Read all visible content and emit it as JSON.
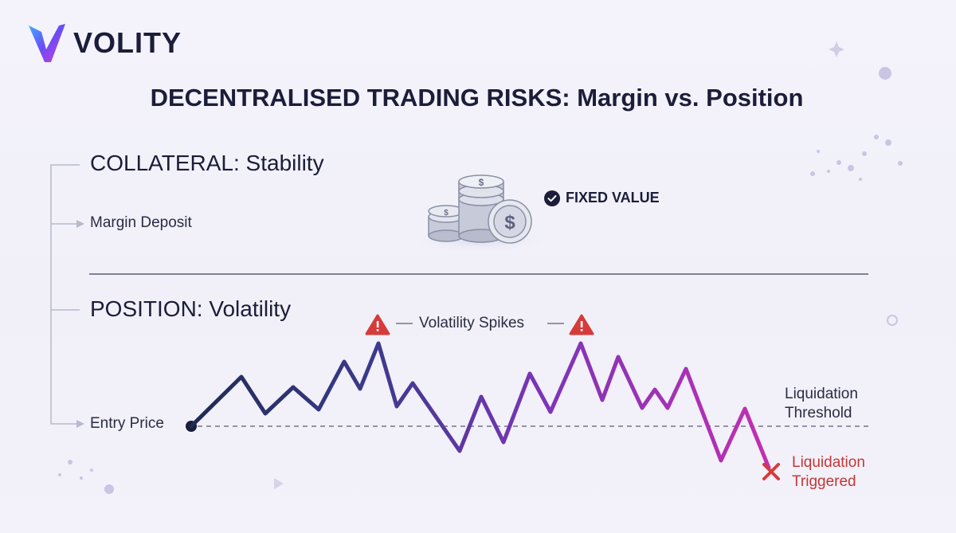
{
  "brand": {
    "name": "VOLITY"
  },
  "title": "DECENTRALISED TRADING RISKS: Margin vs. Position",
  "collateral": {
    "title": "COLLATERAL: Stability",
    "row_label": "Margin Deposit",
    "badge": "FIXED VALUE"
  },
  "position": {
    "title": "POSITION: Volatility",
    "row_label": "Entry Price",
    "spikes_label": "Volatility Spikes",
    "threshold_label": [
      "Liquidation",
      "Threshold"
    ],
    "triggered_label": [
      "Liquidation",
      "Triggered"
    ]
  },
  "colors": {
    "navy": "#1b1d3a",
    "line_start": "#2a3464",
    "line_end": "#c42fb2",
    "warning": "#d63b3b"
  },
  "icons": [
    "volity-logo-icon",
    "coin-stack-icon",
    "check-circle-icon",
    "warning-triangle-icon",
    "x-mark-icon"
  ]
}
